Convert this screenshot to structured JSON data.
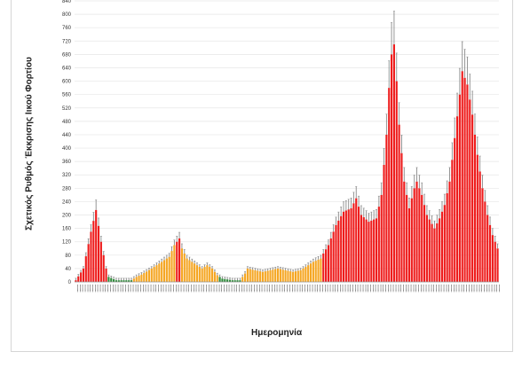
{
  "chart_data": {
    "type": "bar",
    "ylabel": "Σχετικός Ρυθμός Έκκρισης Ιικού Φορτίου",
    "xlabel": "Ημερομηνία",
    "ylim": [
      0,
      840
    ],
    "yticks": [
      0,
      40,
      80,
      120,
      160,
      200,
      240,
      280,
      320,
      360,
      400,
      440,
      480,
      520,
      560,
      600,
      640,
      680,
      720,
      760,
      800,
      840
    ],
    "grid": true,
    "legend": "none",
    "colors": {
      "red": "#ee1c1c",
      "orange": "#f5a623",
      "green": "#2e8b3a",
      "error": "#8a8a8a"
    },
    "shape_points": [
      [
        0,
        5,
        "red"
      ],
      [
        3,
        40,
        "red"
      ],
      [
        6,
        150,
        "red"
      ],
      [
        8,
        215,
        "red"
      ],
      [
        10,
        120,
        "red"
      ],
      [
        12,
        40,
        "red"
      ],
      [
        13,
        15,
        "green"
      ],
      [
        16,
        5,
        "green"
      ],
      [
        22,
        5,
        "green"
      ],
      [
        24,
        15,
        "orange"
      ],
      [
        26,
        22,
        "orange"
      ],
      [
        30,
        40,
        "orange"
      ],
      [
        34,
        60,
        "orange"
      ],
      [
        37,
        75,
        "orange"
      ],
      [
        39,
        110,
        "orange"
      ],
      [
        41,
        130,
        "red"
      ],
      [
        42,
        100,
        "orange"
      ],
      [
        44,
        70,
        "orange"
      ],
      [
        47,
        55,
        "orange"
      ],
      [
        50,
        40,
        "orange"
      ],
      [
        52,
        50,
        "orange"
      ],
      [
        54,
        40,
        "orange"
      ],
      [
        56,
        20,
        "orange"
      ],
      [
        58,
        10,
        "green"
      ],
      [
        62,
        5,
        "green"
      ],
      [
        65,
        5,
        "green"
      ],
      [
        67,
        25,
        "orange"
      ],
      [
        68,
        40,
        "orange"
      ],
      [
        71,
        35,
        "orange"
      ],
      [
        74,
        30,
        "orange"
      ],
      [
        77,
        35,
        "orange"
      ],
      [
        80,
        40,
        "orange"
      ],
      [
        83,
        35,
        "orange"
      ],
      [
        86,
        30,
        "orange"
      ],
      [
        89,
        35,
        "orange"
      ],
      [
        91,
        45,
        "orange"
      ],
      [
        94,
        60,
        "orange"
      ],
      [
        97,
        70,
        "orange"
      ],
      [
        98,
        85,
        "red"
      ],
      [
        100,
        110,
        "red"
      ],
      [
        103,
        170,
        "red"
      ],
      [
        106,
        210,
        "red"
      ],
      [
        109,
        220,
        "red"
      ],
      [
        111,
        250,
        "red"
      ],
      [
        113,
        200,
        "red"
      ],
      [
        116,
        180,
        "red"
      ],
      [
        119,
        190,
        "red"
      ],
      [
        121,
        260,
        "red"
      ],
      [
        123,
        440,
        "red"
      ],
      [
        124,
        580,
        "red"
      ],
      [
        125,
        680,
        "red"
      ],
      [
        126,
        710,
        "red"
      ],
      [
        127,
        600,
        "red"
      ],
      [
        128,
        470,
        "red"
      ],
      [
        130,
        300,
        "red"
      ],
      [
        132,
        220,
        "red"
      ],
      [
        134,
        280,
        "red"
      ],
      [
        135,
        300,
        "red"
      ],
      [
        137,
        260,
        "red"
      ],
      [
        139,
        200,
        "red"
      ],
      [
        142,
        160,
        "red"
      ],
      [
        144,
        190,
        "red"
      ],
      [
        146,
        230,
        "red"
      ],
      [
        148,
        300,
        "red"
      ],
      [
        150,
        430,
        "red"
      ],
      [
        152,
        560,
        "red"
      ],
      [
        153,
        630,
        "red"
      ],
      [
        155,
        590,
        "red"
      ],
      [
        157,
        500,
        "red"
      ],
      [
        159,
        380,
        "red"
      ],
      [
        161,
        280,
        "red"
      ],
      [
        163,
        200,
        "red"
      ],
      [
        165,
        140,
        "red"
      ],
      [
        167,
        100,
        "red"
      ]
    ]
  }
}
